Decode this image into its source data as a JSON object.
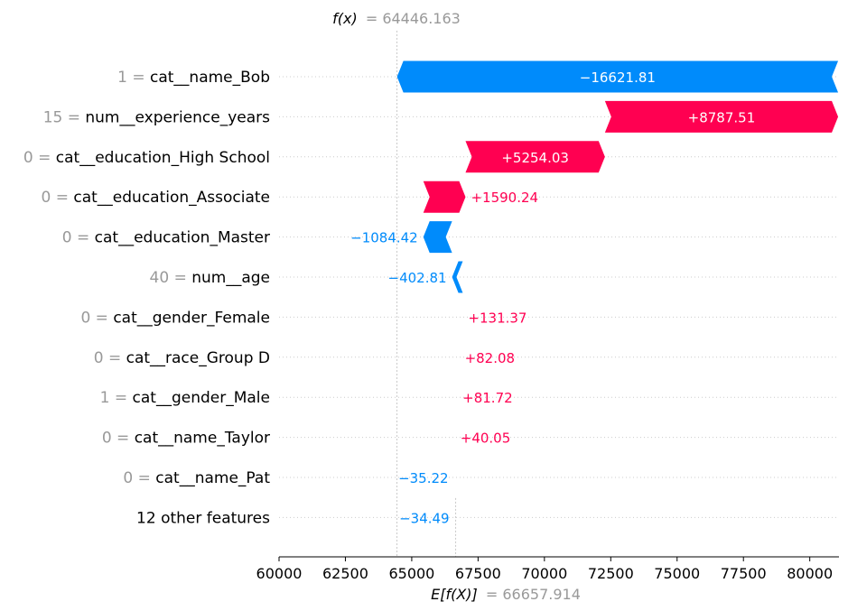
{
  "chart_data": {
    "type": "waterfall",
    "fx_label": "f(x)",
    "fx_value": "= 64446.163",
    "ex_label": "E[f(X)]",
    "ex_value": "= 66657.914",
    "base_value": 66657.914,
    "final_value": 64446.163,
    "xlim": [
      60000,
      81100
    ],
    "x_ticks": [
      60000,
      62500,
      65000,
      67500,
      70000,
      72500,
      75000,
      77500,
      80000
    ],
    "x_tick_labels": [
      "60000",
      "62500",
      "65000",
      "67500",
      "70000",
      "72500",
      "75000",
      "77500",
      "80000"
    ],
    "grid": "dotted horizontal row lines",
    "colors": {
      "positive": "#ff0051",
      "negative": "#008bfb",
      "value_gray": "#999999",
      "text": "#000000"
    },
    "features": [
      {
        "value": "1",
        "name": "cat__name_Bob",
        "contribution": -16621.81,
        "label": "−16621.81"
      },
      {
        "value": "15",
        "name": "num__experience_years",
        "contribution": 8787.51,
        "label": "+8787.51"
      },
      {
        "value": "0",
        "name": "cat__education_High School",
        "contribution": 5254.03,
        "label": "+5254.03"
      },
      {
        "value": "0",
        "name": "cat__education_Associate",
        "contribution": 1590.24,
        "label": "+1590.24"
      },
      {
        "value": "0",
        "name": "cat__education_Master",
        "contribution": -1084.42,
        "label": "−1084.42"
      },
      {
        "value": "40",
        "name": "num__age",
        "contribution": -402.81,
        "label": "−402.81"
      },
      {
        "value": "0",
        "name": "cat__gender_Female",
        "contribution": 131.37,
        "label": "+131.37"
      },
      {
        "value": "0",
        "name": "cat__race_Group D",
        "contribution": 82.08,
        "label": "+82.08"
      },
      {
        "value": "1",
        "name": "cat__gender_Male",
        "contribution": 81.72,
        "label": "+81.72"
      },
      {
        "value": "0",
        "name": "cat__name_Taylor",
        "contribution": 40.05,
        "label": "+40.05"
      },
      {
        "value": "0",
        "name": "cat__name_Pat",
        "contribution": -35.22,
        "label": "−35.22"
      },
      {
        "value": "",
        "name": "12 other features",
        "contribution": -34.49,
        "label": "−34.49"
      }
    ]
  }
}
